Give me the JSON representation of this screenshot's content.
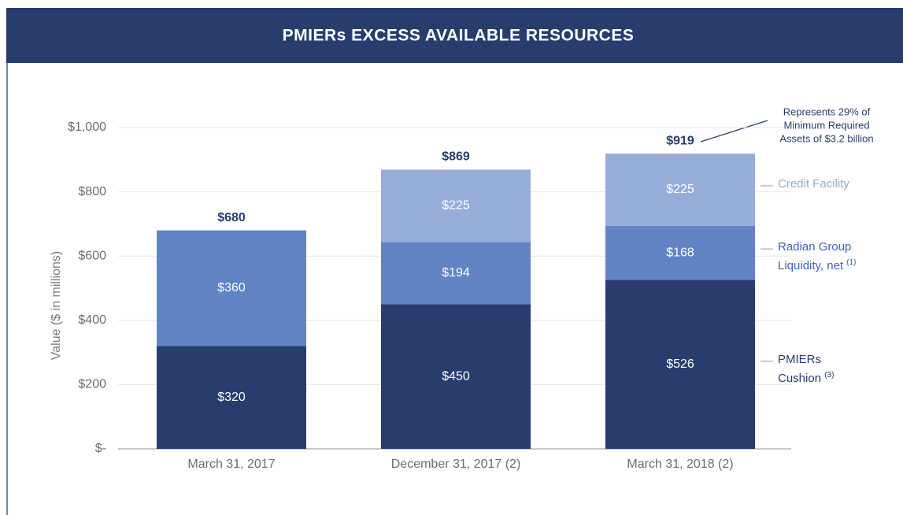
{
  "chart_data": {
    "type": "stacked_bar",
    "title": "PMIERs EXCESS AVAILABLE RESOURCES",
    "ylabel": "Value ($ in millions)",
    "categories": [
      "March 31, 2017",
      "December 31, 2017 (2)",
      "March 31, 2018 (2)"
    ],
    "series": [
      {
        "name": "PMIERs Cushion",
        "note": "(3)",
        "color": "#283d6e",
        "values": [
          320,
          450,
          526
        ],
        "value_labels": [
          "$320",
          "$450",
          "$526"
        ]
      },
      {
        "name": "Radian Group Liquidity, net",
        "note": "(1)",
        "color": "#6283c4",
        "values": [
          360,
          194,
          168
        ],
        "value_labels": [
          "$360",
          "$194",
          "$168"
        ]
      },
      {
        "name": "Credit Facility",
        "color": "#96acd9",
        "values": [
          null,
          225,
          225
        ],
        "value_labels": [
          null,
          "$225",
          "$225"
        ]
      }
    ],
    "totals": [
      680,
      869,
      919
    ],
    "total_labels": [
      "$680",
      "$869",
      "$919"
    ],
    "annotation": [
      "Represents 29% of",
      "Minimum Required",
      "Assets of $3.2 billion"
    ],
    "ylim": [
      0,
      1000
    ],
    "yticks": [
      {
        "value": 0,
        "label": "$-"
      },
      {
        "value": 200,
        "label": "$200"
      },
      {
        "value": 400,
        "label": "$400"
      },
      {
        "value": 600,
        "label": "$600"
      },
      {
        "value": 800,
        "label": "$800"
      },
      {
        "value": 1000,
        "label": "$1,000"
      }
    ],
    "grid": true
  }
}
